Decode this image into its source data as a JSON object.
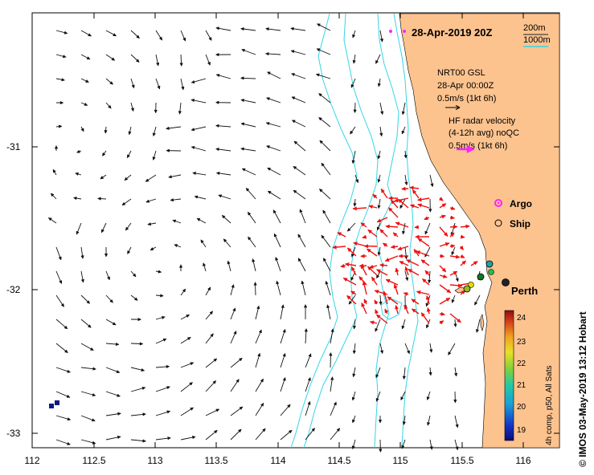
{
  "map": {
    "title": "28-Apr-2019 20Z",
    "x_ticks": [
      "112",
      "112.5",
      "113",
      "113.5",
      "114",
      "114.5",
      "115",
      "115.5",
      "116"
    ],
    "y_ticks": [
      "-31",
      "-32",
      "-33"
    ],
    "isobath_labels": [
      "200m",
      "1000m"
    ],
    "model_label": [
      "NRT00 GSL",
      "28-Apr 00:00Z",
      "0.5m/s (1kt 6h)"
    ],
    "radar_label": [
      "HF radar velocity",
      "(4-12h avg) noQC",
      "0.5m/s (1kt 6h)"
    ],
    "legend": {
      "argo": "Argo",
      "ship": "Ship"
    },
    "place": "Perth",
    "colorbar": {
      "ticks": [
        "24",
        "23",
        "22",
        "21",
        "20",
        "19"
      ],
      "label": "4h comp, p50, All Sats"
    },
    "credit": "© IMOS 03-May-2019 13:12 Hobart",
    "colors": {
      "land": "#fdc38f",
      "isobath": "#33d6e6",
      "radar_arrow": "#ee1111",
      "argo": "#ff22ff",
      "isobath_200_key": "#222222",
      "isobath_1000_key": "#33d6e6"
    }
  }
}
